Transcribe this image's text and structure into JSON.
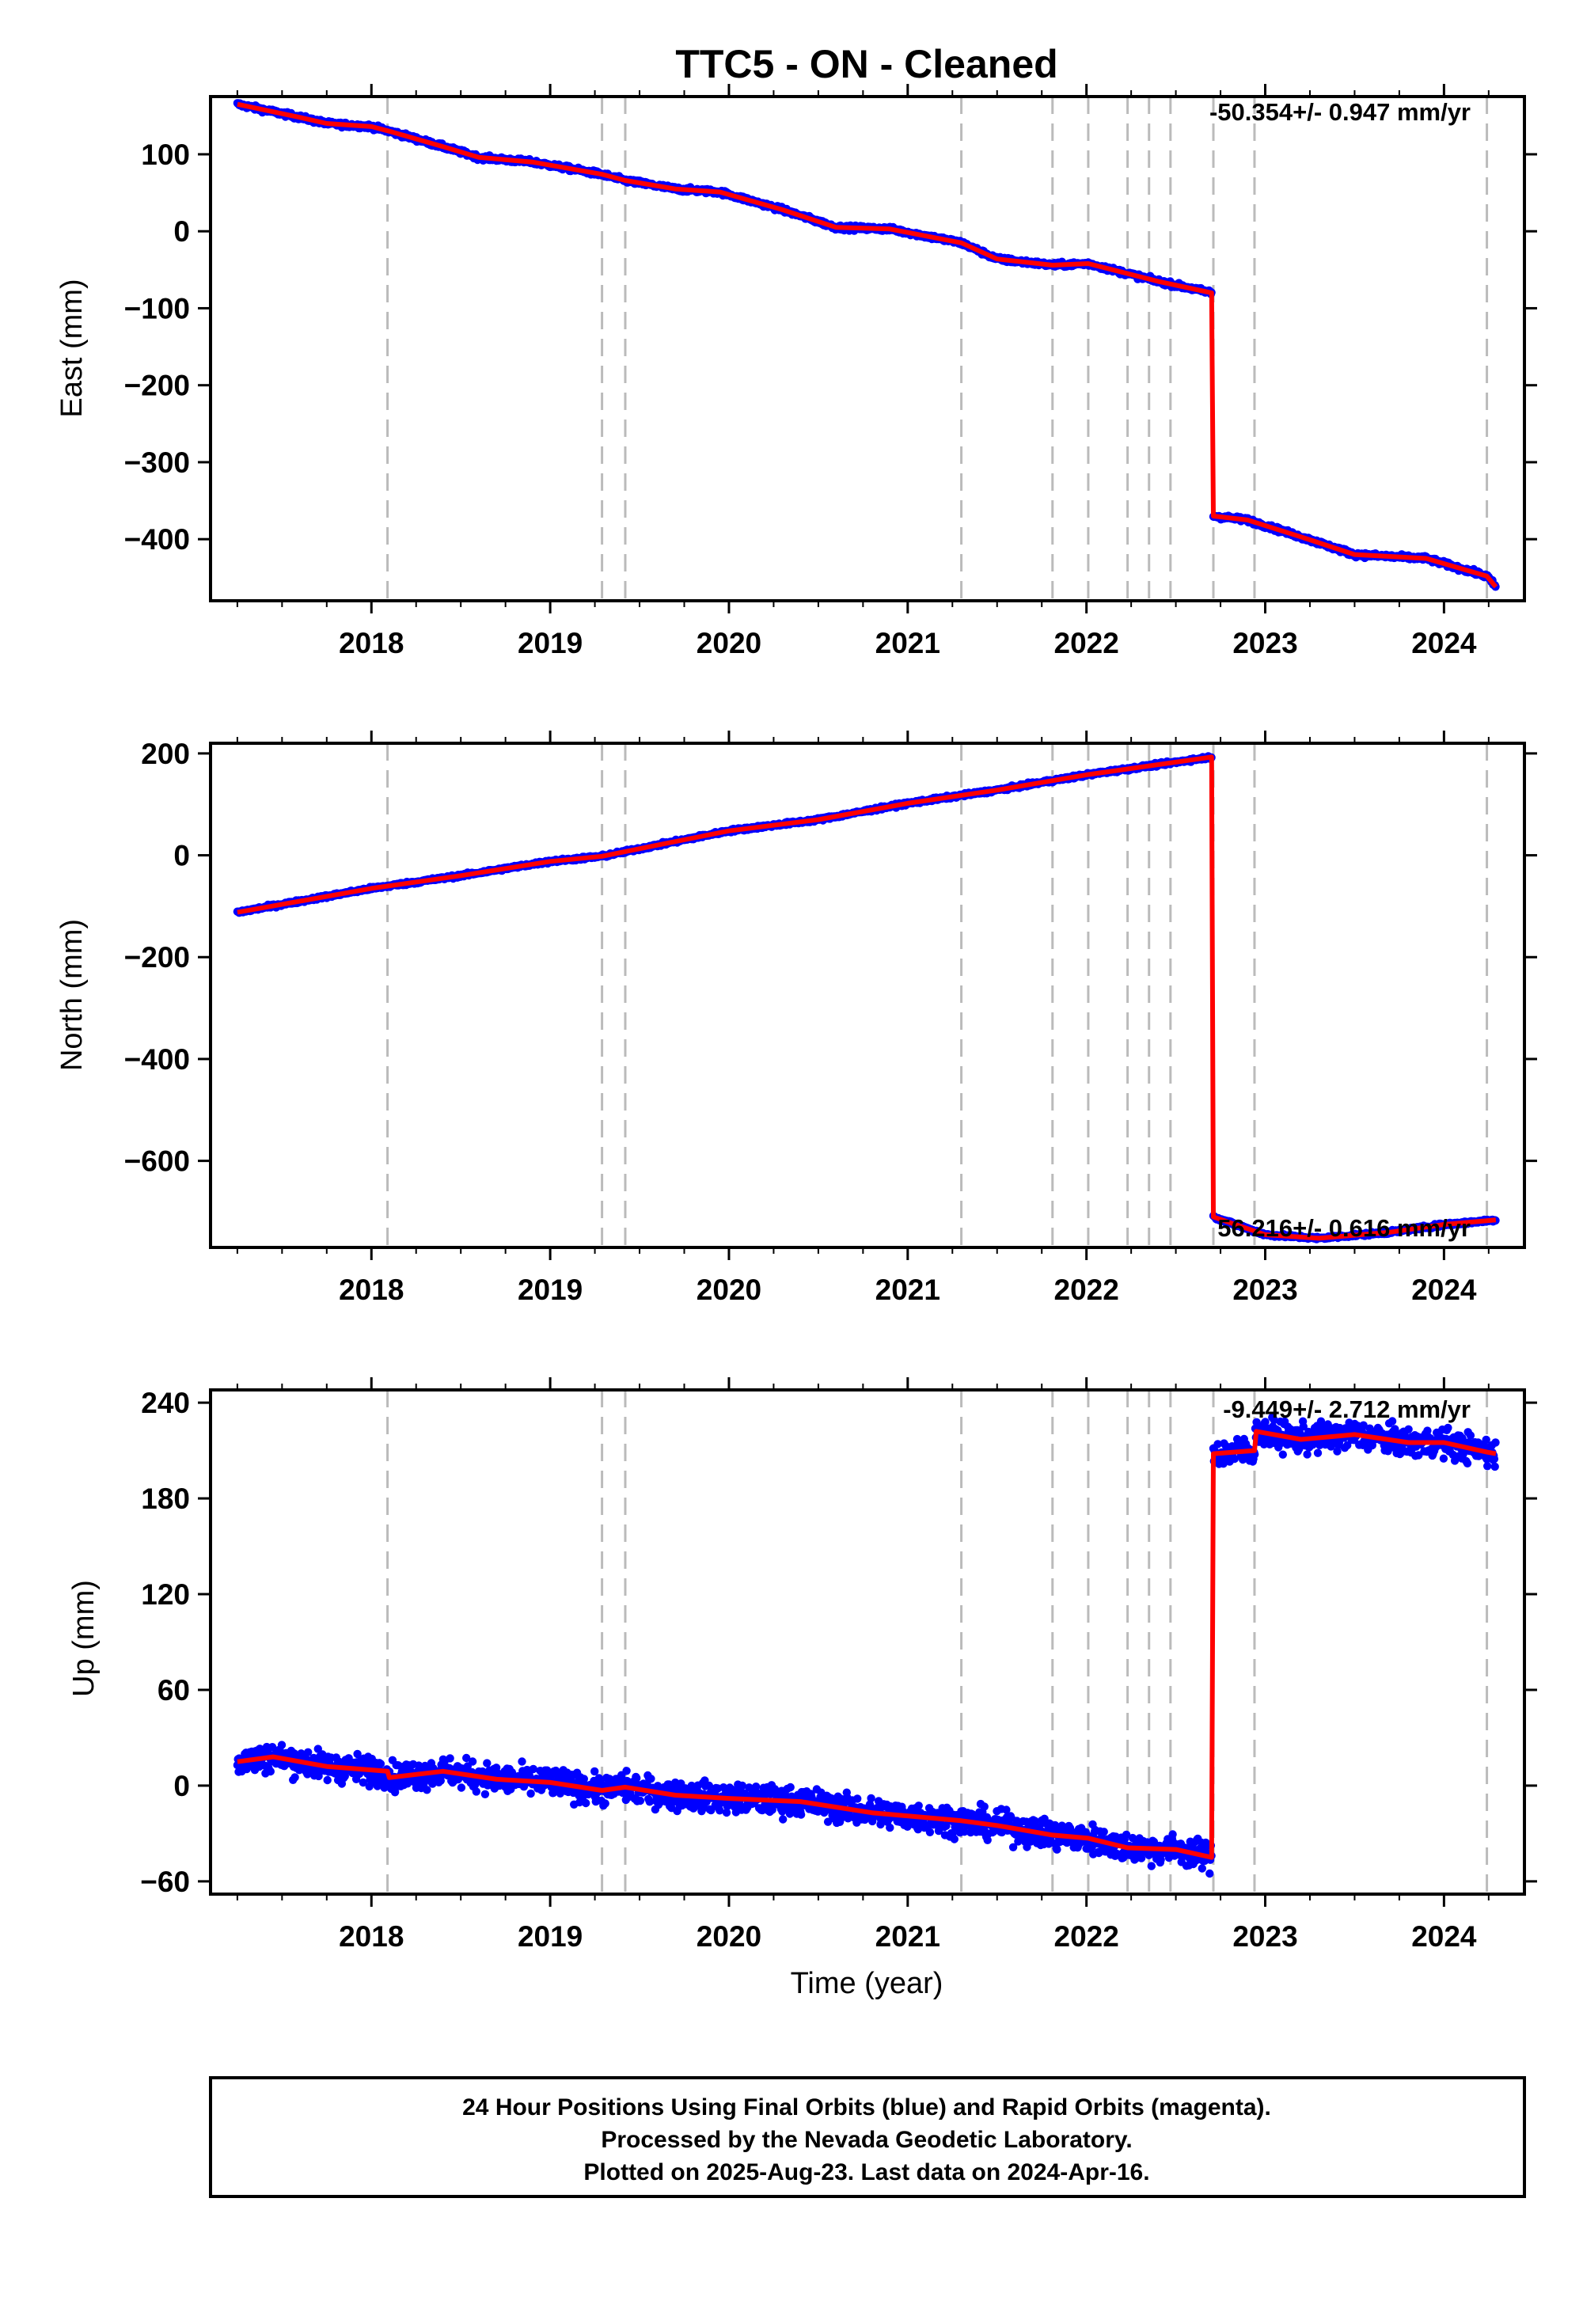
{
  "title": "TTC5  - ON - Cleaned",
  "footer": [
    "24 Hour Positions Using Final Orbits (blue) and Rapid Orbits (magenta).",
    "Processed by the Nevada Geodetic Laboratory.",
    "Plotted on 2025-Aug-23. Last data on 2024-Apr-16."
  ],
  "colors": {
    "points": "#0000ff",
    "model": "#ff0000",
    "events": "#bbbbbb"
  },
  "chart_data": [
    {
      "type": "scatter",
      "component": "east",
      "ylabel": "East (mm)",
      "xlabel": "",
      "rate_label": "-50.354+/- 0.947 mm/yr",
      "xlim": [
        2017.1,
        2024.45
      ],
      "ylim": [
        -480,
        175
      ],
      "xticks": [
        2018,
        2019,
        2020,
        2021,
        2022,
        2023,
        2024
      ],
      "yticks": [
        -400,
        -300,
        -200,
        -100,
        0,
        100
      ],
      "ytick_labels": [
        "−400",
        "−300",
        "−200",
        "−100",
        "0",
        "100"
      ],
      "events": [
        2018.09,
        2019.29,
        2019.42,
        2021.3,
        2021.81,
        2022.01,
        2022.23,
        2022.35,
        2022.47,
        2022.71,
        2022.94,
        2024.24
      ],
      "noise": 3,
      "model": [
        [
          2017.25,
          165
        ],
        [
          2017.6,
          148
        ],
        [
          2017.75,
          140
        ],
        [
          2018.0,
          136
        ],
        [
          2018.1,
          130
        ],
        [
          2018.4,
          110
        ],
        [
          2018.6,
          96
        ],
        [
          2018.9,
          90
        ],
        [
          2019.29,
          74
        ],
        [
          2019.42,
          66
        ],
        [
          2019.7,
          55
        ],
        [
          2019.95,
          51
        ],
        [
          2020.3,
          28
        ],
        [
          2020.6,
          5
        ],
        [
          2020.9,
          3
        ],
        [
          2021.3,
          -15
        ],
        [
          2021.5,
          -36
        ],
        [
          2021.81,
          -44
        ],
        [
          2022.01,
          -42
        ],
        [
          2022.4,
          -65
        ],
        [
          2022.7,
          -80
        ],
        [
          2022.71,
          -370
        ],
        [
          2022.9,
          -375
        ],
        [
          2023.2,
          -397
        ],
        [
          2023.5,
          -420
        ],
        [
          2023.9,
          -425
        ],
        [
          2024.24,
          -448
        ],
        [
          2024.29,
          -462
        ]
      ]
    },
    {
      "type": "scatter",
      "component": "north",
      "ylabel": "North (mm)",
      "xlabel": "",
      "rate_label": "56.216+/- 0.616 mm/yr",
      "xlim": [
        2017.1,
        2024.45
      ],
      "ylim": [
        -770,
        220
      ],
      "xticks": [
        2018,
        2019,
        2020,
        2021,
        2022,
        2023,
        2024
      ],
      "yticks": [
        -600,
        -400,
        -200,
        0,
        200
      ],
      "ytick_labels": [
        "−600",
        "−400",
        "−200",
        "0",
        "200"
      ],
      "events": [
        2018.09,
        2019.29,
        2019.42,
        2021.3,
        2021.81,
        2022.01,
        2022.23,
        2022.35,
        2022.47,
        2022.71,
        2022.94,
        2024.24
      ],
      "noise": 3,
      "model": [
        [
          2017.25,
          -112
        ],
        [
          2018.0,
          -65
        ],
        [
          2018.5,
          -40
        ],
        [
          2019.0,
          -12
        ],
        [
          2019.29,
          -2
        ],
        [
          2019.6,
          20
        ],
        [
          2020.0,
          48
        ],
        [
          2020.5,
          70
        ],
        [
          2021.0,
          102
        ],
        [
          2021.5,
          128
        ],
        [
          2022.0,
          158
        ],
        [
          2022.7,
          193
        ],
        [
          2022.71,
          -710
        ],
        [
          2023.0,
          -745
        ],
        [
          2023.3,
          -752
        ],
        [
          2023.7,
          -740
        ],
        [
          2024.0,
          -725
        ],
        [
          2024.29,
          -716
        ]
      ]
    },
    {
      "type": "scatter",
      "component": "up",
      "ylabel": "Up (mm)",
      "xlabel": "Time (year)",
      "rate_label": "-9.449+/- 2.712 mm/yr",
      "xlim": [
        2017.1,
        2024.45
      ],
      "ylim": [
        -68,
        248
      ],
      "xticks": [
        2018,
        2019,
        2020,
        2021,
        2022,
        2023,
        2024
      ],
      "yticks": [
        -60,
        0,
        60,
        120,
        180,
        240
      ],
      "ytick_labels": [
        "−60",
        "0",
        "60",
        "120",
        "180",
        "240"
      ],
      "events": [
        2018.09,
        2019.29,
        2019.42,
        2021.3,
        2021.81,
        2022.01,
        2022.23,
        2022.35,
        2022.47,
        2022.71,
        2022.94,
        2024.24
      ],
      "noise": 9,
      "model": [
        [
          2017.25,
          15
        ],
        [
          2017.45,
          18
        ],
        [
          2017.75,
          12
        ],
        [
          2018.09,
          9
        ],
        [
          2018.1,
          5
        ],
        [
          2018.4,
          9
        ],
        [
          2018.7,
          4
        ],
        [
          2019.0,
          2
        ],
        [
          2019.29,
          -3
        ],
        [
          2019.42,
          -1
        ],
        [
          2019.7,
          -6
        ],
        [
          2020.0,
          -8
        ],
        [
          2020.4,
          -10
        ],
        [
          2020.8,
          -17
        ],
        [
          2021.3,
          -22
        ],
        [
          2021.5,
          -25
        ],
        [
          2021.81,
          -31
        ],
        [
          2022.01,
          -33
        ],
        [
          2022.23,
          -39
        ],
        [
          2022.5,
          -40
        ],
        [
          2022.7,
          -45
        ],
        [
          2022.71,
          208
        ],
        [
          2022.94,
          210
        ],
        [
          2022.95,
          222
        ],
        [
          2023.2,
          217
        ],
        [
          2023.5,
          220
        ],
        [
          2023.8,
          215
        ],
        [
          2024.0,
          215
        ],
        [
          2024.24,
          209
        ],
        [
          2024.29,
          208
        ]
      ]
    }
  ]
}
